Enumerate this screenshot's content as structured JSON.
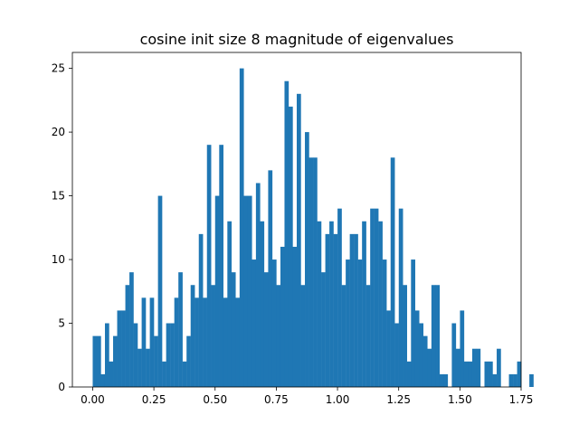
{
  "chart_data": {
    "type": "bar",
    "title": "cosine init size 8 magnitude of eigenvalues",
    "xlabel": "",
    "ylabel": "",
    "xlim": [
      -0.083,
      1.75
    ],
    "ylim": [
      0,
      26.25
    ],
    "bin_width": 0.01667,
    "bin_start": 0.0,
    "counts": [
      4,
      4,
      1,
      5,
      2,
      4,
      6,
      6,
      8,
      9,
      5,
      3,
      7,
      3,
      7,
      4,
      15,
      2,
      5,
      5,
      7,
      9,
      2,
      4,
      8,
      7,
      12,
      7,
      19,
      8,
      15,
      19,
      7,
      13,
      9,
      7,
      25,
      15,
      15,
      10,
      16,
      13,
      9,
      17,
      10,
      8,
      11,
      24,
      22,
      11,
      23,
      8,
      20,
      18,
      18,
      13,
      9,
      12,
      13,
      12,
      14,
      8,
      10,
      12,
      12,
      10,
      13,
      8,
      14,
      14,
      13,
      10,
      6,
      18,
      5,
      14,
      8,
      2,
      10,
      6,
      5,
      4,
      3,
      8,
      8,
      1,
      1,
      0,
      5,
      3,
      6,
      2,
      2,
      3,
      3,
      0,
      2,
      2,
      1,
      3,
      0,
      0,
      1,
      1,
      2,
      0,
      0,
      1
    ],
    "counts_note_": "",
    "bar_color": "#1f77b4",
    "x_ticks": [
      "0.00",
      "0.25",
      "0.50",
      "0.75",
      "1.00",
      "1.25",
      "1.50",
      "1.75"
    ],
    "y_ticks": [
      "0",
      "5",
      "10",
      "15",
      "20",
      "25"
    ]
  }
}
